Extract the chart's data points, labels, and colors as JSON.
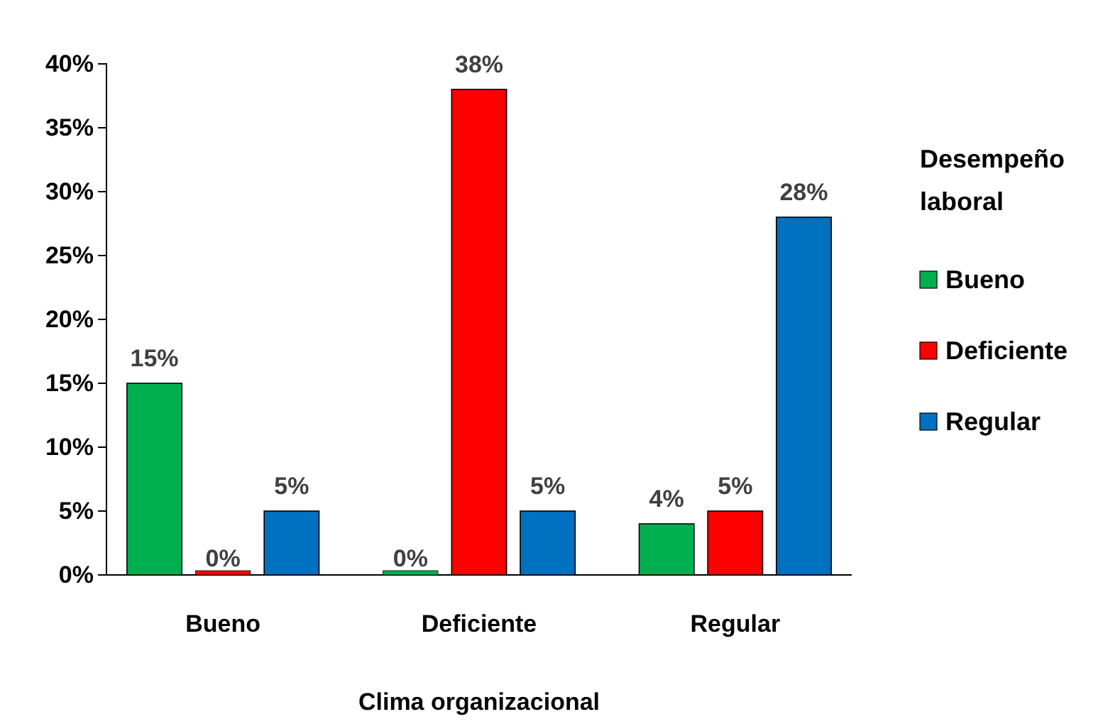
{
  "chart_data": {
    "type": "bar",
    "xlabel": "Clima organizacional",
    "legend_title": "Desempeño laboral",
    "categories": [
      "Bueno",
      "Deficiente",
      "Regular"
    ],
    "series": [
      {
        "name": "Bueno",
        "color": "#00b050",
        "values": [
          15,
          0,
          4
        ],
        "value_labels": [
          "15%",
          "0%",
          "4%"
        ]
      },
      {
        "name": "Deficiente",
        "color": "#ff0000",
        "values": [
          0,
          38,
          5
        ],
        "value_labels": [
          "0%",
          "38%",
          "5%"
        ]
      },
      {
        "name": "Regular",
        "color": "#0070c0",
        "values": [
          5,
          5,
          28
        ],
        "value_labels": [
          "5%",
          "5%",
          "28%"
        ]
      }
    ],
    "ylim": [
      0,
      40
    ],
    "yticks": [
      {
        "value": 0,
        "label": "0%"
      },
      {
        "value": 5,
        "label": "5%"
      },
      {
        "value": 10,
        "label": "10%"
      },
      {
        "value": 15,
        "label": "15%"
      },
      {
        "value": 20,
        "label": "20%"
      },
      {
        "value": 25,
        "label": "25%"
      },
      {
        "value": 30,
        "label": "30%"
      },
      {
        "value": 35,
        "label": "35%"
      },
      {
        "value": 40,
        "label": "40%"
      }
    ],
    "grid": false,
    "legend": "right"
  }
}
